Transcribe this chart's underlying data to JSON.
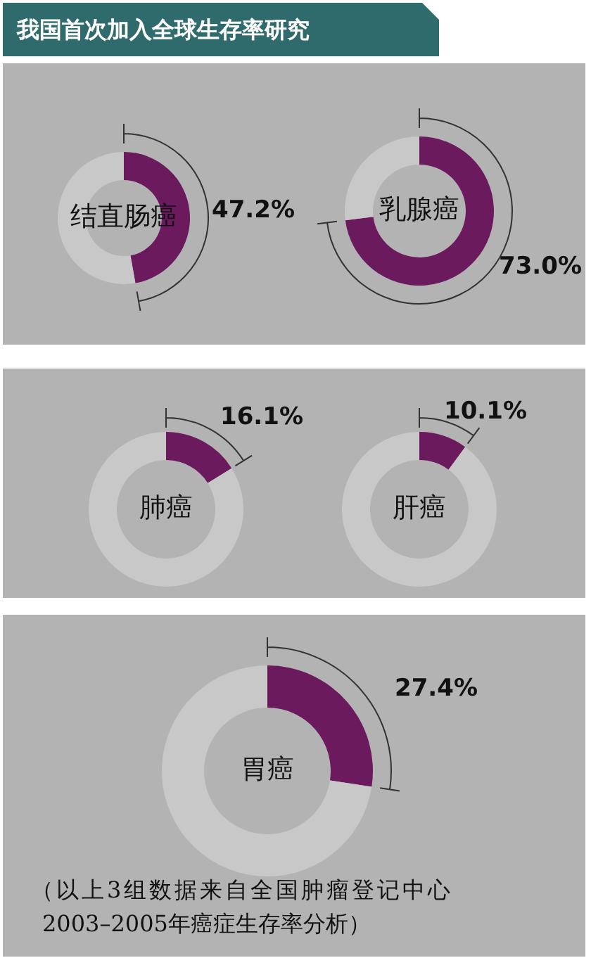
{
  "chart_data": [
    {
      "type": "donut",
      "title": "我国首次加入全球生存率研究",
      "categories": [
        "结直肠癌",
        null
      ],
      "values": [
        47.2,
        52.8
      ],
      "colors": [
        "#6b1a5e",
        "#c8c8c8"
      ],
      "value_labels": [
        "47.2%",
        null
      ]
    },
    {
      "type": "donut",
      "categories": [
        "乳腺癌",
        null
      ],
      "values": [
        73.0,
        27.0
      ],
      "colors": [
        "#6b1a5e",
        "#c8c8c8"
      ],
      "value_labels": [
        "73.0%",
        null
      ]
    },
    {
      "type": "donut",
      "categories": [
        "肺癌",
        null
      ],
      "values": [
        16.1,
        83.9
      ],
      "colors": [
        "#6b1a5e",
        "#c8c8c8"
      ],
      "value_labels": [
        "16.1%",
        null
      ]
    },
    {
      "type": "donut",
      "categories": [
        "肝癌",
        null
      ],
      "values": [
        10.1,
        89.9
      ],
      "colors": [
        "#6b1a5e",
        "#c8c8c8"
      ],
      "value_labels": [
        "10.1%",
        null
      ]
    },
    {
      "type": "donut",
      "categories": [
        "胃癌",
        null
      ],
      "values": [
        27.4,
        72.6
      ],
      "colors": [
        "#6b1a5e",
        "#c8c8c8"
      ],
      "value_labels": [
        "27.4%",
        null
      ],
      "annotations": [
        "（以上3组数据来自全国肿瘤登记中心",
        "2003–2005年癌症生存率分析）"
      ]
    }
  ]
}
